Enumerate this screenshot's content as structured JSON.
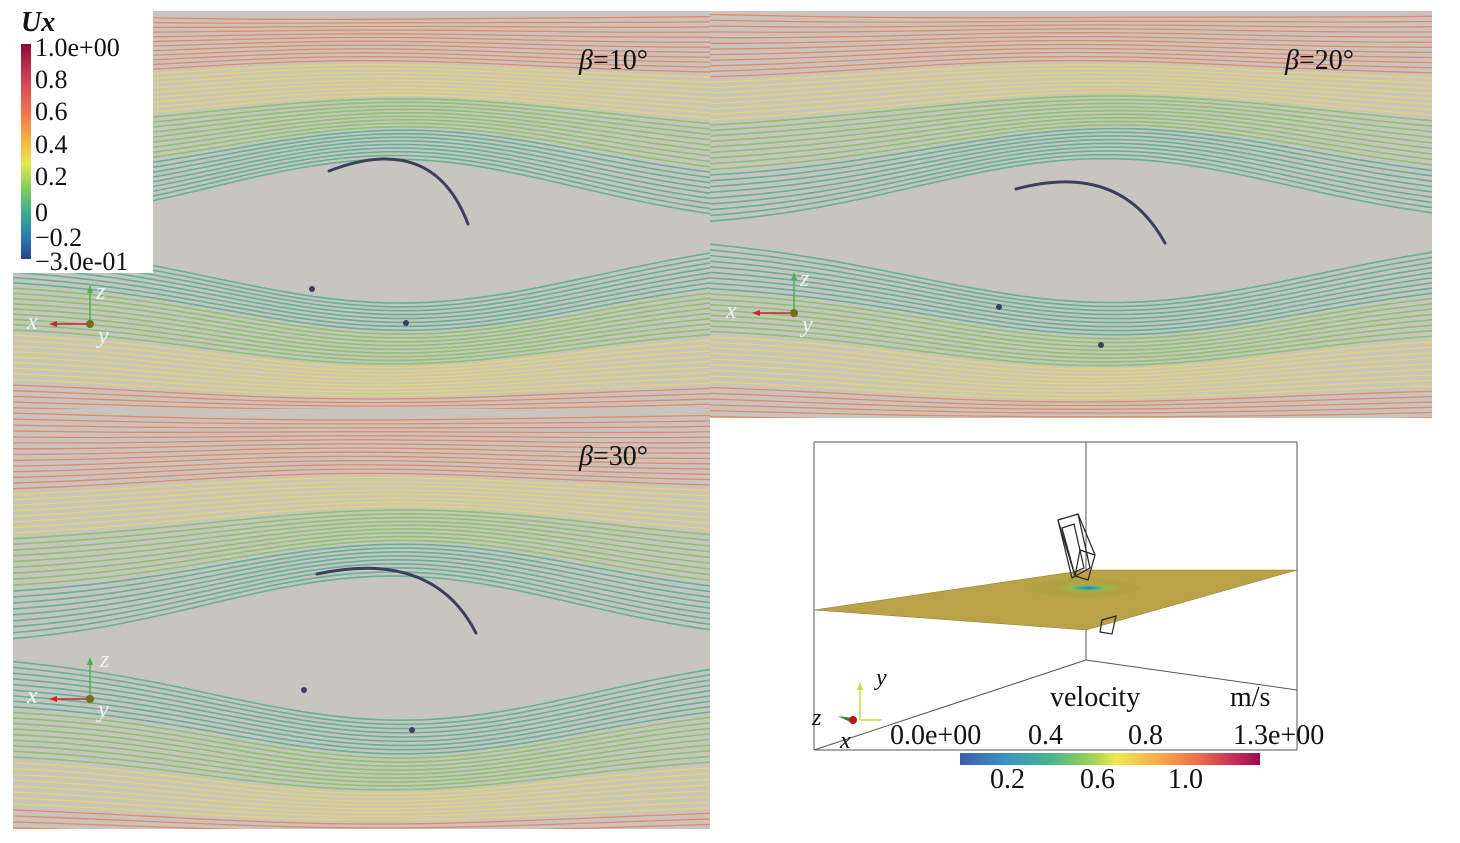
{
  "colorbar_ux": {
    "title": "Ux",
    "labels": [
      "1.0e+00",
      "0.8",
      "0.6",
      "0.4",
      "0.2",
      "0",
      "−0.2",
      "−3.0e-01"
    ]
  },
  "panels": [
    {
      "beta_symbol": "β",
      "beta_value": "=10°"
    },
    {
      "beta_symbol": "β",
      "beta_value": "=20°"
    },
    {
      "beta_symbol": "β",
      "beta_value": "=30°"
    }
  ],
  "panel_axes": {
    "x": "x",
    "y": "y",
    "z": "z"
  },
  "inset": {
    "legend_title": "velocity",
    "legend_unit": "m/s",
    "top_labels": [
      "0.0e+00",
      "0.4",
      "0.8",
      "1.3e+00"
    ],
    "bottom_labels": [
      "0.2",
      "0.6",
      "1.0"
    ],
    "axes": {
      "y": "y",
      "z": "z",
      "x": "x"
    }
  },
  "colors": {
    "background_field": "#c8c5c1",
    "stream_fast": "#ef7a50",
    "stream_mid": "#f0d84a",
    "stream_slow": "#7ec25a",
    "stream_low": "#4fae8e",
    "blade": "#3a3f5c"
  }
}
